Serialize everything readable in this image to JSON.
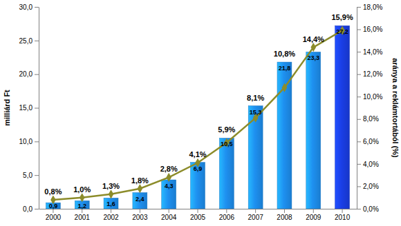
{
  "chart_data": {
    "type": "bar",
    "y_label": "milliárd Ft",
    "y2_label": "aránya a reklámtortából (%)",
    "categories": [
      "2000",
      "2001",
      "2002",
      "2003",
      "2004",
      "2005",
      "2006",
      "2007",
      "2008",
      "2009",
      "2010"
    ],
    "series": [
      {
        "type": "bar",
        "colors": [
          "#1e90f0",
          "#1e90f0",
          "#1e90f0",
          "#1e90f0",
          "#1e90f0",
          "#1e90f0",
          "#1e90f0",
          "#1e90f0",
          "#1e90f0",
          "#1e90f0",
          "#1a3ee6"
        ],
        "values": [
          0.9,
          1.2,
          1.6,
          2.4,
          4.3,
          6.9,
          10.5,
          15.3,
          21.8,
          23.3,
          27.2
        ],
        "value_labels": [
          "0,9",
          "1,2",
          "1,6",
          "2,4",
          "4,3",
          "6,9",
          "10,5",
          "15,3",
          "21,8",
          "23,3",
          "27,2"
        ]
      },
      {
        "type": "line",
        "axis": "y2",
        "color": "#8c8c2a",
        "marker": "diamond",
        "values": [
          0.8,
          1.0,
          1.3,
          1.8,
          2.8,
          4.1,
          5.9,
          8.1,
          10.8,
          14.4,
          15.9
        ],
        "value_labels": [
          "0,8%",
          "1,0%",
          "1,3%",
          "1,8%",
          "2,8%",
          "4,1%",
          "5,9%",
          "8,1%",
          "10,8%",
          "14,4%",
          "15,9%"
        ]
      }
    ],
    "ylim": [
      0,
      30
    ],
    "yticks": [
      {
        "value": 0,
        "label": "0,0"
      },
      {
        "value": 5,
        "label": "5,0"
      },
      {
        "value": 10,
        "label": "10,0"
      },
      {
        "value": 15,
        "label": "15,0"
      },
      {
        "value": 20,
        "label": "20,0"
      },
      {
        "value": 25,
        "label": "25,0"
      },
      {
        "value": 30,
        "label": "30,0"
      }
    ],
    "y2lim": [
      0,
      18
    ],
    "y2ticks": [
      {
        "value": 0,
        "label": "0,0%"
      },
      {
        "value": 2,
        "label": "2,0%"
      },
      {
        "value": 4,
        "label": "4,0%"
      },
      {
        "value": 6,
        "label": "6,0%"
      },
      {
        "value": 8,
        "label": "8,0%"
      },
      {
        "value": 10,
        "label": "10,0%"
      },
      {
        "value": 12,
        "label": "12,0%"
      },
      {
        "value": 14,
        "label": "14,0%"
      },
      {
        "value": 16,
        "label": "16,0%"
      },
      {
        "value": 18,
        "label": "18,0%"
      }
    ],
    "grid": false,
    "data_labels": true
  }
}
